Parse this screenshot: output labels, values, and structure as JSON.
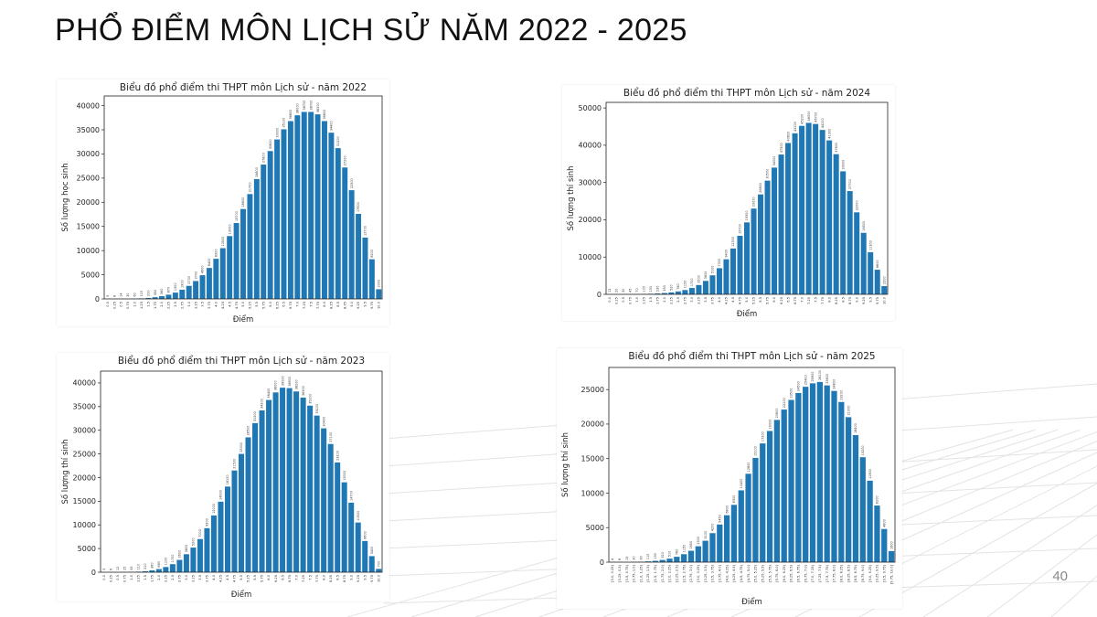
{
  "slide": {
    "title": "PHỔ ĐIỂM MÔN LỊCH SỬ NĂM 2022 - 2025",
    "page_number": "40"
  },
  "colors": {
    "bar": "#1f77b4",
    "grid_lines": "#e3e3e3"
  },
  "chart_data": [
    {
      "id": "2022",
      "type": "bar",
      "title": "Biểu đồ phổ điểm thi THPT môn Lịch sử - năm 2022",
      "xlabel": "Điểm",
      "ylabel": "Số lượng học sinh",
      "ylim": [
        0,
        42000
      ],
      "yticks": [
        0,
        5000,
        10000,
        15000,
        20000,
        25000,
        30000,
        35000,
        40000
      ],
      "grid": false,
      "categories": [
        "0.0",
        "0.25",
        "0.5",
        "0.75",
        "1.0",
        "1.25",
        "1.5",
        "1.75",
        "2.0",
        "2.25",
        "2.5",
        "2.75",
        "3.0",
        "3.25",
        "3.5",
        "3.75",
        "4.0",
        "4.25",
        "4.5",
        "4.75",
        "5.0",
        "5.25",
        "5.5",
        "5.75",
        "6.0",
        "6.25",
        "6.5",
        "6.75",
        "7.0",
        "7.25",
        "7.5",
        "7.75",
        "8.0",
        "8.25",
        "8.5",
        "8.75",
        "9.0",
        "9.25",
        "9.5",
        "9.75",
        "10.0"
      ],
      "values": [
        3,
        8,
        14,
        30,
        60,
        115,
        200,
        350,
        560,
        870,
        1300,
        1900,
        2700,
        3700,
        4900,
        6400,
        8300,
        10500,
        13000,
        15700,
        18600,
        21700,
        24800,
        27800,
        30600,
        33000,
        35100,
        36800,
        38000,
        38700,
        38700,
        38200,
        36800,
        34400,
        31200,
        27200,
        22500,
        17600,
        12700,
        8200,
        2000
      ],
      "data_labels": [
        "3",
        "8",
        "14",
        "30",
        "60",
        "115",
        "200",
        "350",
        "560",
        "870",
        "1300",
        "1900",
        "2700",
        "3700",
        "4900",
        "6400",
        "8300",
        "10500",
        "13000",
        "15700",
        "18600",
        "21700",
        "24800",
        "27800",
        "30600",
        "33000",
        "35100",
        "36800",
        "38000",
        "38700",
        "38700",
        "38200",
        "36800",
        "34400",
        "31200",
        "27200",
        "22500",
        "17600",
        "12700",
        "8200",
        "2000"
      ]
    },
    {
      "id": "2024",
      "type": "bar",
      "title": "Biểu đồ phổ điểm thi THPT môn Lịch sử - năm 2024",
      "xlabel": "Điểm",
      "ylabel": "Số lượng thí sinh",
      "ylim": [
        0,
        51500
      ],
      "yticks": [
        0,
        10000,
        20000,
        30000,
        40000,
        50000
      ],
      "grid": false,
      "categories": [
        "0.0",
        "0.25",
        "0.5",
        "0.75",
        "1.0",
        "1.25",
        "1.5",
        "1.75",
        "2.0",
        "2.25",
        "2.5",
        "2.75",
        "3.0",
        "3.25",
        "3.5",
        "3.75",
        "4.0",
        "4.25",
        "4.5",
        "4.75",
        "5.0",
        "5.25",
        "5.5",
        "5.75",
        "6.0",
        "6.25",
        "6.5",
        "6.75",
        "7.0",
        "7.25",
        "7.5",
        "7.75",
        "8.0",
        "8.25",
        "8.5",
        "8.75",
        "9.0",
        "9.25",
        "9.5",
        "9.75",
        "10.0"
      ],
      "values": [
        12,
        20,
        30,
        45,
        70,
        100,
        150,
        230,
        350,
        520,
        780,
        1150,
        1700,
        2500,
        3600,
        5100,
        7000,
        9400,
        12300,
        15700,
        19300,
        23000,
        26800,
        30500,
        34000,
        37500,
        40600,
        43200,
        45200,
        46000,
        45700,
        44100,
        41300,
        37600,
        33000,
        27700,
        22000,
        16500,
        11300,
        6600,
        2200
      ],
      "data_labels": [
        "12",
        "20",
        "30",
        "45",
        "70",
        "100",
        "150",
        "230",
        "350",
        "520",
        "780",
        "1150",
        "1700",
        "2500",
        "3600",
        "5100",
        "7000",
        "9400",
        "12300",
        "15700",
        "19300",
        "23000",
        "26800",
        "30500",
        "34000",
        "37500",
        "40600",
        "43200",
        "45200",
        "46000",
        "45700",
        "44100",
        "41300",
        "37600",
        "33000",
        "27700",
        "22000",
        "16500",
        "11300",
        "6600",
        "2200"
      ]
    },
    {
      "id": "2023",
      "type": "bar",
      "title": "Biểu đồ phổ điểm thi THPT môn Lịch sử - năm 2023",
      "xlabel": "Điểm",
      "ylabel": "Số lượng thí sinh",
      "ylim": [
        0,
        42500
      ],
      "yticks": [
        0,
        5000,
        10000,
        15000,
        20000,
        25000,
        30000,
        35000,
        40000
      ],
      "grid": false,
      "categories": [
        "0.0",
        "0.25",
        "0.5",
        "0.75",
        "1.0",
        "1.25",
        "1.5",
        "1.75",
        "2.0",
        "2.25",
        "2.5",
        "2.75",
        "3.0",
        "3.25",
        "3.5",
        "3.75",
        "4.0",
        "4.25",
        "4.5",
        "4.75",
        "5.0",
        "5.25",
        "5.5",
        "5.75",
        "6.0",
        "6.25",
        "6.5",
        "6.75",
        "7.0",
        "7.25",
        "7.5",
        "7.75",
        "8.0",
        "8.25",
        "8.5",
        "8.75",
        "9.0",
        "9.25",
        "9.5",
        "9.75",
        "10.0"
      ],
      "values": [
        3,
        6,
        12,
        25,
        55,
        110,
        210,
        390,
        660,
        1100,
        1700,
        2600,
        3800,
        5200,
        7000,
        9300,
        12000,
        14900,
        18100,
        21500,
        25000,
        28500,
        31500,
        34200,
        36400,
        38000,
        39000,
        38900,
        38200,
        36900,
        35200,
        33100,
        30400,
        27100,
        23200,
        19000,
        14700,
        10500,
        6600,
        3400,
        700
      ],
      "data_labels": [
        "3",
        "6",
        "12",
        "25",
        "55",
        "110",
        "210",
        "390",
        "660",
        "1100",
        "1700",
        "2600",
        "3800",
        "5200",
        "7000",
        "9300",
        "12000",
        "14900",
        "18100",
        "21500",
        "25000",
        "28500",
        "31500",
        "34200",
        "36400",
        "38000",
        "39000",
        "38900",
        "38200",
        "36900",
        "35200",
        "33100",
        "30400",
        "27100",
        "23200",
        "19000",
        "14700",
        "10500",
        "6600",
        "3400",
        "700"
      ]
    },
    {
      "id": "2025",
      "type": "bar",
      "title": "Biểu đồ phổ điểm thi THPT môn Lịch sử - năm 2025",
      "xlabel": "Điểm",
      "ylabel": "Số lượng thí sinh",
      "ylim": [
        0,
        28200
      ],
      "yticks": [
        0,
        5000,
        10000,
        15000,
        20000,
        25000
      ],
      "grid": false,
      "categories": [
        "[0.0, 0.25)",
        "[0.25, 0.5)",
        "[0.5, 0.75)",
        "[0.75, 1.0)",
        "[1.0, 1.25)",
        "[1.25, 1.5)",
        "[1.5, 1.75)",
        "[1.75, 2.0)",
        "[2.0, 2.25)",
        "[2.25, 2.5)",
        "[2.5, 2.75)",
        "[2.75, 3.0)",
        "[3.0, 3.25)",
        "[3.25, 3.5)",
        "[3.5, 3.75)",
        "[3.75, 4.0)",
        "[4.0, 4.25)",
        "[4.25, 4.5)",
        "[4.5, 4.75)",
        "[4.75, 5.0)",
        "[5.0, 5.25)",
        "[5.25, 5.5)",
        "[5.5, 5.75)",
        "[5.75, 6.0)",
        "[6.0, 6.25)",
        "[6.25, 6.5)",
        "[6.5, 6.75)",
        "[6.75, 7.0)",
        "[7.0, 7.25)",
        "[7.25, 7.5)",
        "[7.5, 7.75)",
        "[7.75, 8.0)",
        "[8.0, 8.25)",
        "[8.25, 8.5)",
        "[8.5, 8.75)",
        "[8.75, 9.0)",
        "[9.0, 9.25)",
        "[9.25, 9.5)",
        "[9.5, 9.75)",
        "[9.75, 10.0]"
      ],
      "values": [
        4,
        8,
        15,
        30,
        60,
        110,
        190,
        320,
        510,
        780,
        1150,
        1650,
        2300,
        3100,
        4200,
        5450,
        6800,
        8300,
        10400,
        12800,
        15100,
        17200,
        19000,
        20600,
        22100,
        23500,
        24500,
        25400,
        25900,
        26100,
        25600,
        24800,
        23200,
        21000,
        18400,
        15200,
        11800,
        8200,
        4800,
        1600
      ],
      "data_labels": [
        "4",
        "8",
        "15",
        "30",
        "60",
        "110",
        "190",
        "320",
        "510",
        "780",
        "1150",
        "1650",
        "2300",
        "3100",
        "4200",
        "5450",
        "6800",
        "8300",
        "10400",
        "12800",
        "15100",
        "17200",
        "19000",
        "20600",
        "22100",
        "23500",
        "24500",
        "25400",
        "25900",
        "26100",
        "25600",
        "24800",
        "23200",
        "21000",
        "18400",
        "15200",
        "11800",
        "8200",
        "4800",
        "1600"
      ]
    }
  ]
}
